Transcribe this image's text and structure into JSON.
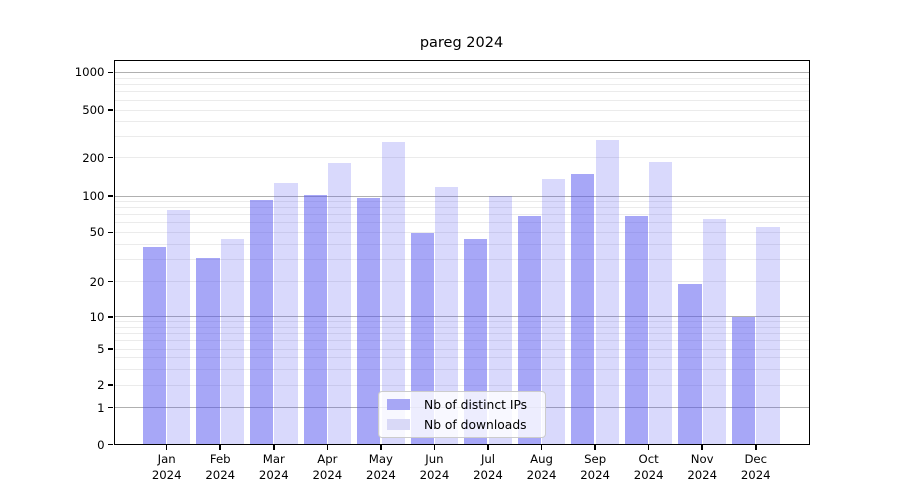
{
  "title": "pareg 2024",
  "chart_data": {
    "type": "bar",
    "title": "pareg 2024",
    "categories": [
      "Jan 2024",
      "Feb 2024",
      "Mar 2024",
      "Apr 2024",
      "May 2024",
      "Jun 2024",
      "Jul 2024",
      "Aug 2024",
      "Sep 2024",
      "Oct 2024",
      "Nov 2024",
      "Dec 2024"
    ],
    "series": [
      {
        "name": "Nb of distinct IPs",
        "color": "#a7a7f5",
        "values": [
          38,
          31,
          92,
          102,
          97,
          49,
          44,
          68,
          148,
          68,
          19,
          10
        ]
      },
      {
        "name": "Nb of downloads",
        "color": "#d9d9f7",
        "values": [
          76,
          44,
          127,
          180,
          270,
          117,
          100,
          135,
          280,
          185,
          64,
          55
        ]
      }
    ],
    "xlabel": "",
    "ylabel": "",
    "yscale": "symlog",
    "yticks": [
      0,
      1,
      2,
      5,
      10,
      20,
      50,
      100,
      200,
      500,
      1000
    ],
    "ylim": [
      0,
      1400
    ],
    "grid": true,
    "legend_position": "lower center"
  }
}
